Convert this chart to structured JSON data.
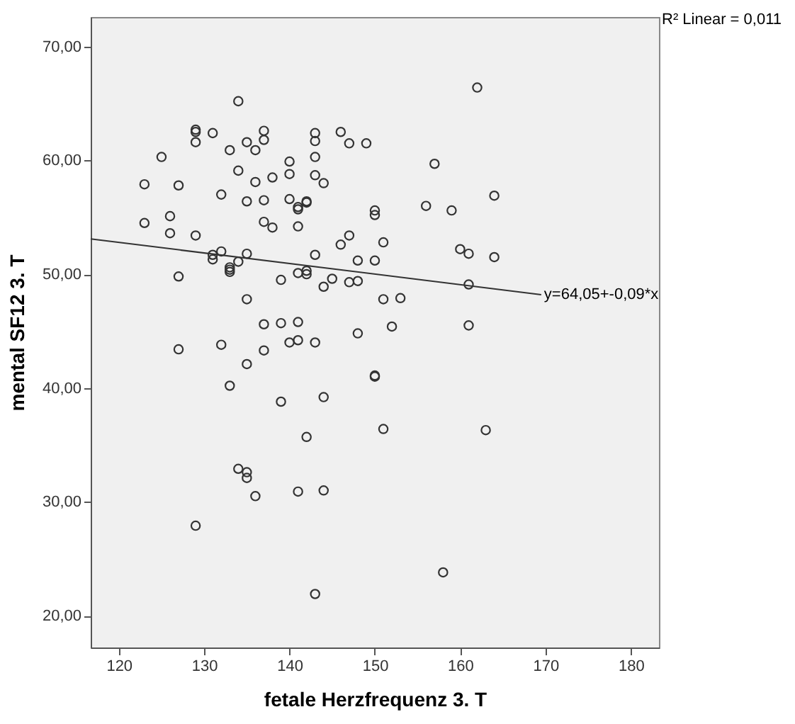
{
  "chart_data": {
    "type": "scatter",
    "xlabel": "fetale Herzfrequenz 3. T",
    "ylabel": "mental SF12 3. T",
    "xlim": [
      116.7,
      183.3
    ],
    "ylim": [
      17.2,
      72.6
    ],
    "xticks": [
      120,
      130,
      140,
      150,
      160,
      170,
      180
    ],
    "yticks": [
      {
        "value": 20,
        "label": "20,00"
      },
      {
        "value": 30,
        "label": "30,00"
      },
      {
        "value": 40,
        "label": "40,00"
      },
      {
        "value": 50,
        "label": "50,00"
      },
      {
        "value": 60,
        "label": "60,00"
      },
      {
        "value": 70,
        "label": "70,00"
      }
    ],
    "grid": false,
    "series": [
      {
        "color": "#333333",
        "marker": "circle",
        "x": [
          134,
          129,
          129,
          129,
          131,
          125,
          123,
          123,
          127,
          126,
          126,
          129,
          127,
          133,
          135,
          136,
          137,
          137,
          134,
          136,
          138,
          140,
          140,
          143,
          143,
          143,
          143,
          144,
          146,
          147,
          149,
          132,
          135,
          137,
          140,
          141,
          142,
          141,
          142,
          137,
          138,
          141,
          150,
          150,
          146,
          147,
          151,
          148,
          150,
          143,
          131,
          131,
          132,
          133,
          133,
          133,
          134,
          135,
          135,
          139,
          141,
          142,
          142,
          144,
          145,
          147,
          148,
          151,
          153,
          152,
          137,
          139,
          141,
          148,
          140,
          141,
          143,
          132,
          127,
          137,
          135,
          162,
          157,
          164,
          156,
          159,
          160,
          161,
          164,
          161,
          161,
          133,
          139,
          144,
          150,
          150,
          151,
          142,
          134,
          135,
          135,
          136,
          141,
          144,
          129,
          143,
          163,
          158
        ],
        "values": [
          65.2,
          62.7,
          62.5,
          61.6,
          62.4,
          60.3,
          57.9,
          54.5,
          57.8,
          55.1,
          53.6,
          53.4,
          49.8,
          60.9,
          61.6,
          60.9,
          62.6,
          61.8,
          59.1,
          58.1,
          58.5,
          59.9,
          58.8,
          62.4,
          61.7,
          60.3,
          58.7,
          58.0,
          62.5,
          61.5,
          61.5,
          57.0,
          56.4,
          56.5,
          56.6,
          55.9,
          56.3,
          55.7,
          56.4,
          54.6,
          54.1,
          54.2,
          55.6,
          55.2,
          52.6,
          53.4,
          52.8,
          51.2,
          51.2,
          51.7,
          51.7,
          51.3,
          52.0,
          50.6,
          50.2,
          50.4,
          51.1,
          51.8,
          47.8,
          49.5,
          50.1,
          50.3,
          50.0,
          48.9,
          49.6,
          49.3,
          49.4,
          47.8,
          47.9,
          45.4,
          45.6,
          45.7,
          45.8,
          44.8,
          44.0,
          44.2,
          44.0,
          43.8,
          43.4,
          43.3,
          42.1,
          66.4,
          59.7,
          56.9,
          56.0,
          55.6,
          52.2,
          51.8,
          51.5,
          49.1,
          45.5,
          40.2,
          38.8,
          39.2,
          41.1,
          41.0,
          36.4,
          35.7,
          32.9,
          32.6,
          32.1,
          30.5,
          30.9,
          31.0,
          27.9,
          21.9,
          36.3,
          23.8
        ]
      },
      {
        "type": "line",
        "marker": "none",
        "color": "#333333",
        "x": [
          116.7,
          169.5
        ],
        "values": [
          53.1,
          48.2
        ]
      }
    ],
    "annotations": [
      "R² Linear = 0,011",
      {
        "text": "y=64,05+-0,09*x",
        "x": 169.5,
        "y": 48.2
      }
    ]
  }
}
